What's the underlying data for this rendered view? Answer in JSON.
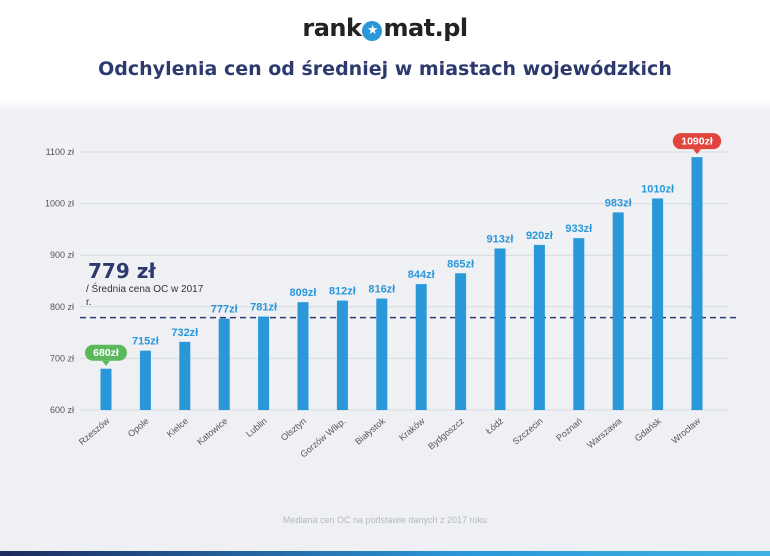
{
  "header": {
    "logo_text_left": "rank",
    "logo_badge": "★",
    "logo_text_right": "mat.pl",
    "title": "Odchylenia cen od średniej w miastach wojewódzkich"
  },
  "average": {
    "value": "779 zł",
    "label": "/  Średnia cena OC w 2017 r.",
    "line_value": 779
  },
  "footnote": "Mediana cen OC na podstawie danych z 2017 roku",
  "colors": {
    "bar": "#2a97d9",
    "value_label": "#2a97d9",
    "min_badge": "#5cb85c",
    "max_badge": "#e0463e",
    "avg_line": "#2d3a6e"
  },
  "chart_data": {
    "type": "bar",
    "title": "Odchylenia cen od średniej w miastach wojewódzkich",
    "categories": [
      "Rzeszów",
      "Opole",
      "Kielce",
      "Katowice",
      "Lublin",
      "Olsztyn",
      "Gorzów Wlkp.",
      "Białystok",
      "Kraków",
      "Bydgoszcz",
      "Łódź",
      "Szczecin",
      "Poznań",
      "Warszawa",
      "Gdańsk",
      "Wrocław"
    ],
    "values": [
      680,
      715,
      732,
      777,
      781,
      809,
      812,
      816,
      844,
      865,
      913,
      920,
      933,
      983,
      1010,
      1090
    ],
    "value_labels": [
      "680zł",
      "715zł",
      "732zł",
      "777zł",
      "781zł",
      "809zł",
      "812zł",
      "816zł",
      "844zł",
      "865zł",
      "913zł",
      "920zł",
      "933zł",
      "983zł",
      "1010zł",
      "1090zł"
    ],
    "yticks": [
      600,
      700,
      800,
      900,
      1000,
      1100
    ],
    "ytick_labels": [
      "600 zł",
      "700 zł",
      "800 zł",
      "900 zł",
      "1000 zł",
      "1100 zł"
    ],
    "ylim": [
      600,
      1100
    ],
    "reference_line": 779,
    "grid": true,
    "highlight_min_index": 0,
    "highlight_max_index": 15
  }
}
